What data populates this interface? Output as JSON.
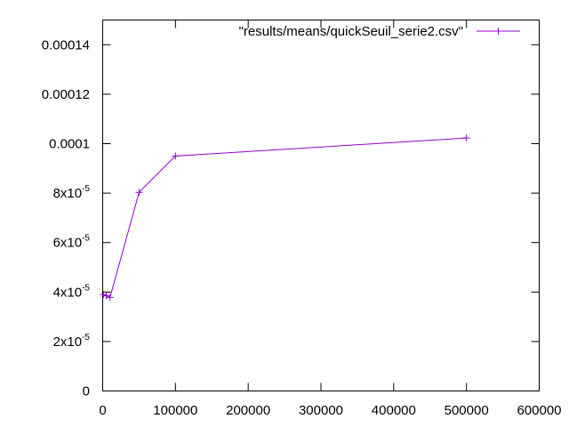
{
  "chart_data": {
    "type": "line",
    "title": "",
    "xlabel": "",
    "ylabel": "",
    "xlim": [
      0,
      600000
    ],
    "ylim": [
      0,
      0.00015
    ],
    "grid": false,
    "legend_position": "top-right",
    "x_ticks": [
      {
        "value": 0,
        "label": "0"
      },
      {
        "value": 100000,
        "label": "100000"
      },
      {
        "value": 200000,
        "label": "200000"
      },
      {
        "value": 300000,
        "label": "300000"
      },
      {
        "value": 400000,
        "label": "400000"
      },
      {
        "value": 500000,
        "label": "500000"
      },
      {
        "value": 600000,
        "label": "600000"
      }
    ],
    "y_ticks": [
      {
        "value": 0,
        "mantissa": "0",
        "exponent": ""
      },
      {
        "value": 2e-05,
        "mantissa": "2x10",
        "exponent": "-5"
      },
      {
        "value": 4e-05,
        "mantissa": "4x10",
        "exponent": "-5"
      },
      {
        "value": 6e-05,
        "mantissa": "6x10",
        "exponent": "-5"
      },
      {
        "value": 8e-05,
        "mantissa": "8x10",
        "exponent": "-5"
      },
      {
        "value": 0.0001,
        "mantissa": "0.0001",
        "exponent": ""
      },
      {
        "value": 0.00012,
        "mantissa": "0.00012",
        "exponent": ""
      },
      {
        "value": 0.00014,
        "mantissa": "0.00014",
        "exponent": ""
      }
    ],
    "series": [
      {
        "name": "\"results/means/quickSeuil_serie2.csv\"",
        "color": "#9400d3",
        "marker": "plus",
        "points": [
          {
            "x": 1000,
            "y": 3.9e-05
          },
          {
            "x": 5000,
            "y": 3.85e-05
          },
          {
            "x": 10000,
            "y": 3.78e-05
          },
          {
            "x": 50000,
            "y": 8.03e-05
          },
          {
            "x": 100000,
            "y": 9.5e-05
          },
          {
            "x": 500000,
            "y": 0.0001023
          }
        ]
      }
    ]
  }
}
